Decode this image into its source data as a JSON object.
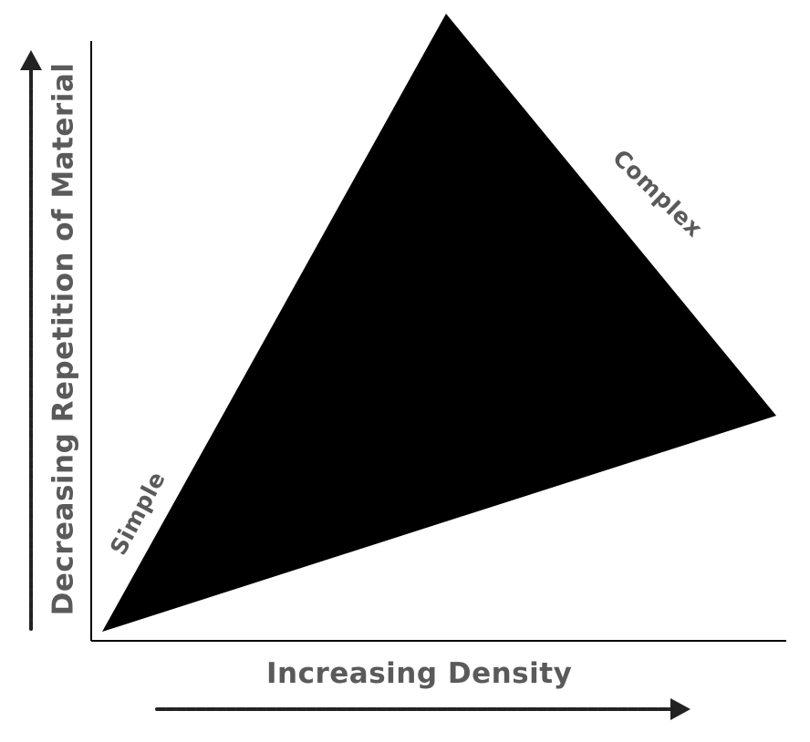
{
  "diagram": {
    "x_axis_label": "Increasing Density",
    "y_axis_label": "Decreasing Repetition of Material",
    "corner_labels": {
      "low": "Simple",
      "high": "Complex"
    },
    "colors": {
      "triangle_fill": "#000000",
      "axis_line": "#000000",
      "label_text": "#5a5a5a",
      "arrow": "#222222"
    }
  }
}
